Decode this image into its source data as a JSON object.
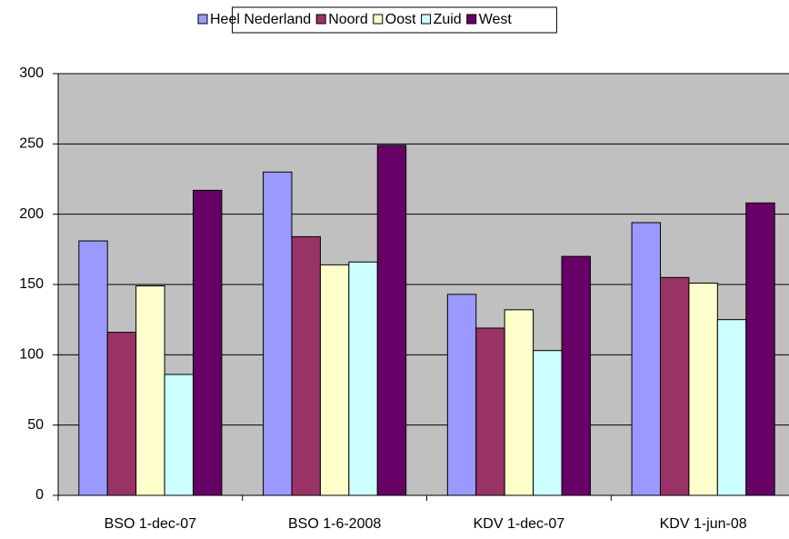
{
  "chart_data": {
    "type": "bar",
    "categories": [
      "BSO 1-dec-07",
      "BSO 1-6-2008",
      "KDV 1-dec-07",
      "KDV 1-jun-08"
    ],
    "series": [
      {
        "name": "Heel Nederland",
        "color": "#9999ff",
        "values": [
          181,
          230,
          143,
          194
        ]
      },
      {
        "name": "Noord",
        "color": "#993366",
        "values": [
          116,
          184,
          119,
          155
        ]
      },
      {
        "name": "Oost",
        "color": "#ffffcc",
        "values": [
          149,
          164,
          132,
          151
        ]
      },
      {
        "name": "Zuid",
        "color": "#ccffff",
        "values": [
          86,
          166,
          103,
          125
        ]
      },
      {
        "name": "West",
        "color": "#660066",
        "values": [
          217,
          249,
          170,
          208
        ]
      }
    ],
    "ylim": [
      0,
      300
    ],
    "yticks": [
      0,
      50,
      100,
      150,
      200,
      250,
      300
    ],
    "grid": true,
    "legend": "top",
    "plot_background": "#c0c0c0"
  }
}
